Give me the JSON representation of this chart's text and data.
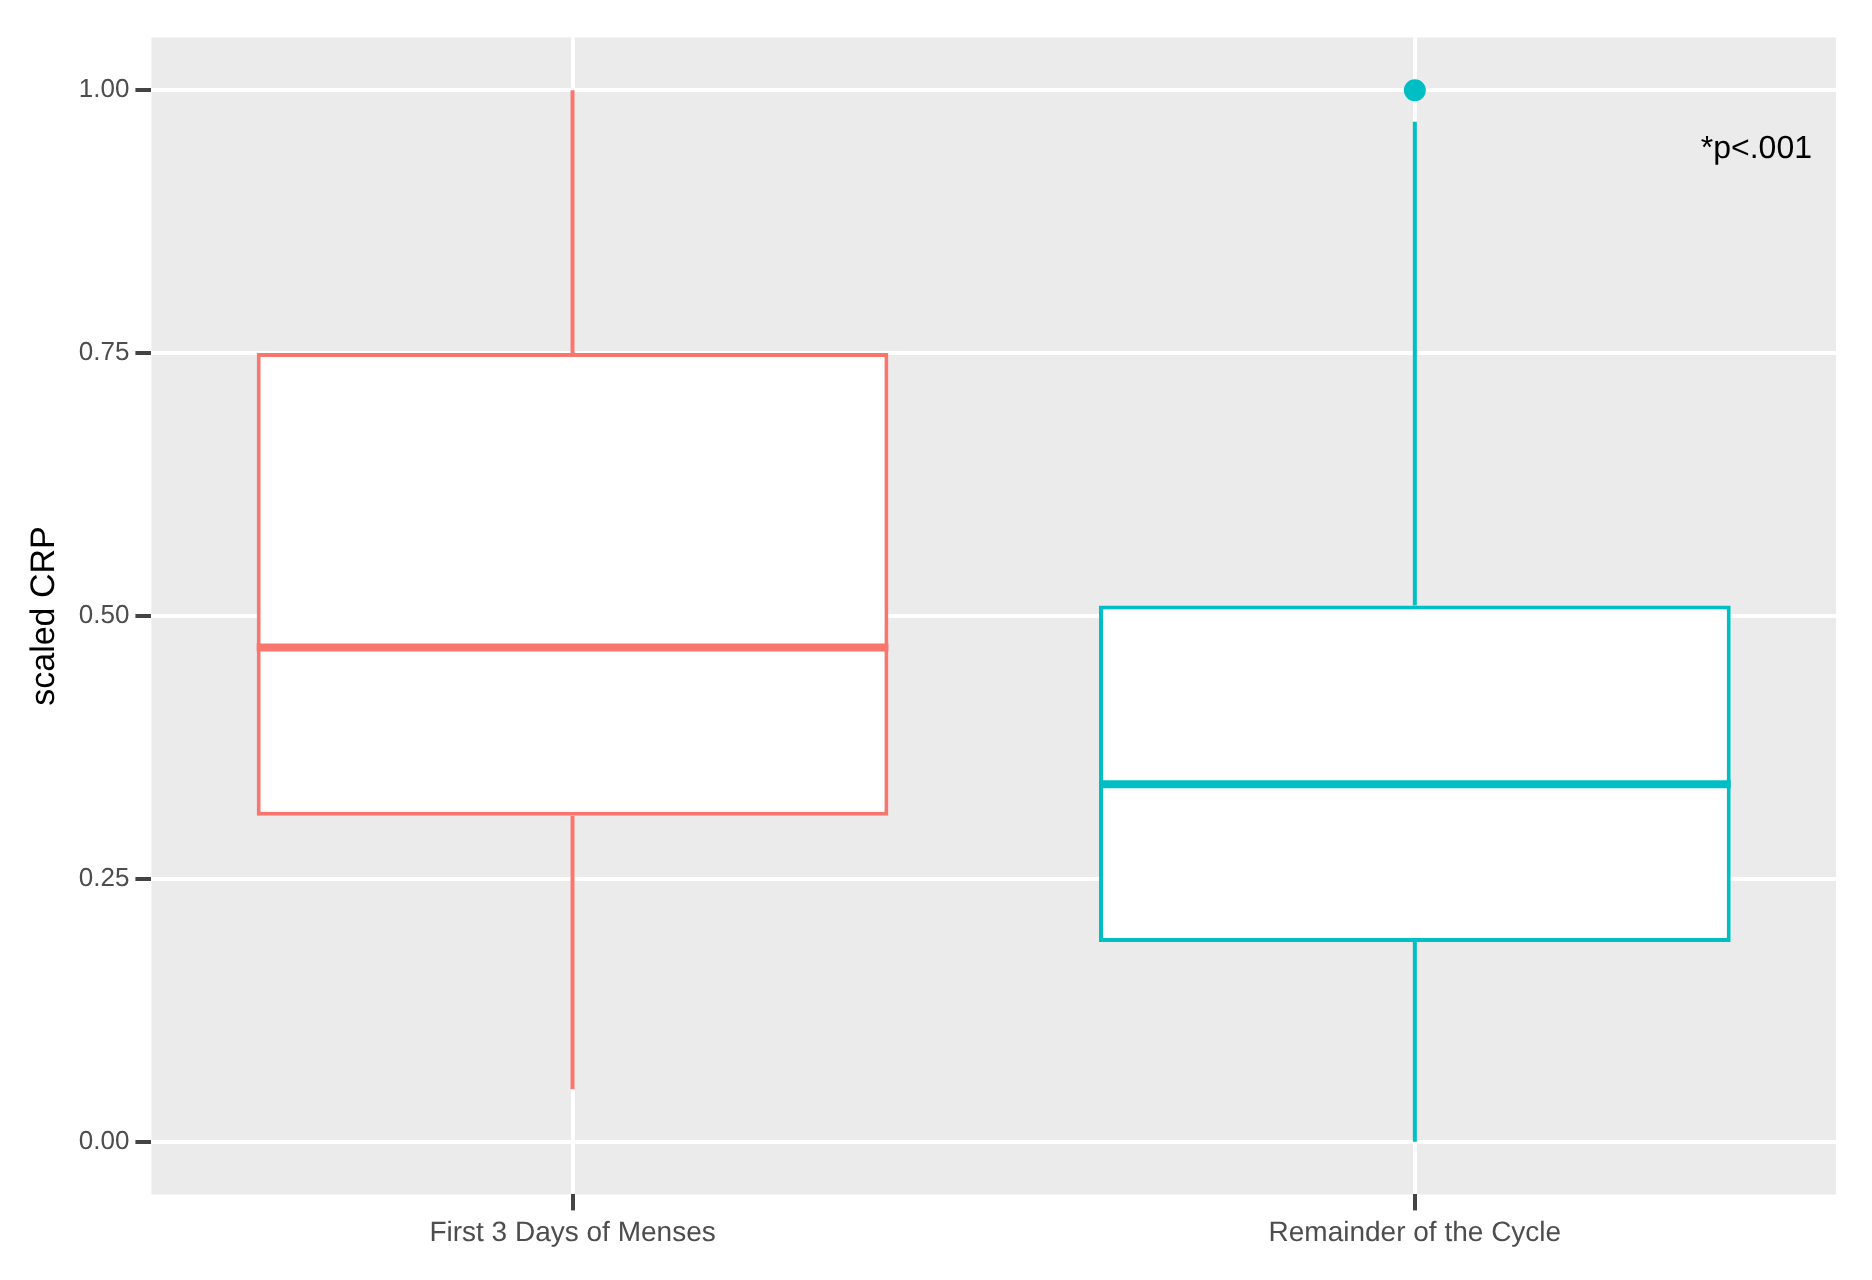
{
  "chart_data": {
    "type": "box",
    "ylabel": "scaled CRP",
    "categories": [
      "First 3 Days of Menses",
      "Remainder of the Cycle"
    ],
    "series": [
      {
        "colors": [
          "#f8766d",
          "#00bfc4"
        ],
        "boxes": [
          {
            "low": 0.05,
            "q1": 0.31,
            "median": 0.47,
            "q3": 0.75,
            "high": 1.0
          },
          {
            "low": 0.0,
            "q1": 0.19,
            "median": 0.34,
            "q3": 0.51,
            "high": 0.97,
            "outliers": [
              1.0
            ]
          }
        ]
      }
    ],
    "ylim": [
      -0.05,
      1.05
    ],
    "yticks": [
      {
        "value": 0,
        "label": "0.00"
      },
      {
        "value": 0.25,
        "label": "0.25"
      },
      {
        "value": 0.5,
        "label": "0.50"
      },
      {
        "value": 0.75,
        "label": "0.75"
      },
      {
        "value": 1,
        "label": "1.00"
      }
    ],
    "grid": true,
    "legend": false,
    "annotations": [
      "*p<.001"
    ]
  }
}
